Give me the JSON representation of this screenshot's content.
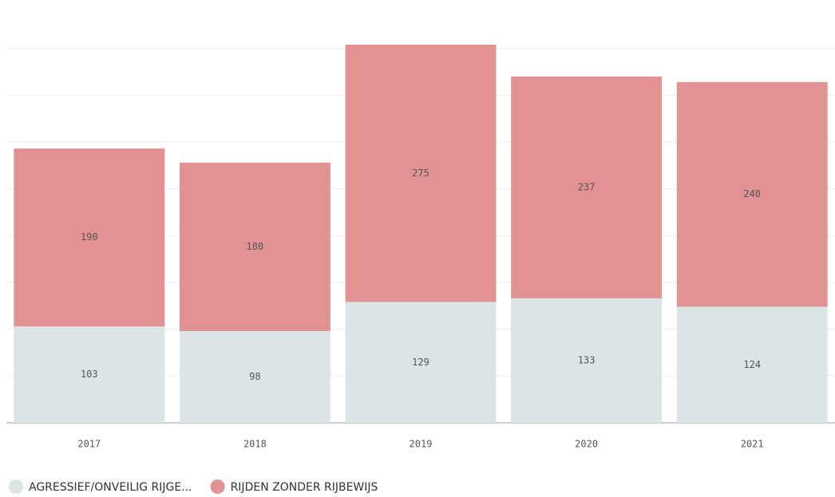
{
  "chart_data": {
    "type": "stacked_bar",
    "categories": [
      "2017",
      "2018",
      "2019",
      "2020",
      "2021"
    ],
    "series": [
      {
        "name": "AGRESSIEF/ONVEILIG RIJGE...",
        "color": "#dce5e6",
        "values": [
          103,
          98,
          129,
          133,
          124
        ]
      },
      {
        "name": "RIJDEN ZONDER RIJBEWIJS",
        "color": "#e39294",
        "values": [
          190,
          180,
          275,
          237,
          240
        ]
      }
    ],
    "ylim": [
      0,
      450
    ],
    "yticks": [
      0,
      50,
      100,
      150,
      200,
      250,
      300,
      350,
      400
    ],
    "grid": true
  }
}
